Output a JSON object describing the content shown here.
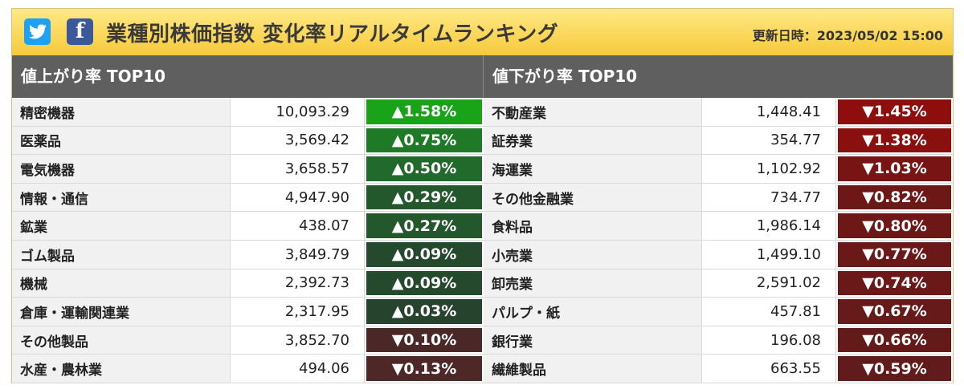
{
  "header": {
    "title": "業種別株価指数 変化率リアルタイムランキング",
    "updated": "更新日時：2023/05/02 15:00"
  },
  "gainers": {
    "heading": "値上がり率 TOP10",
    "rows": [
      {
        "name": "精密機器",
        "value": "10,093.29",
        "change": "▲1.58%",
        "color": "#18a318"
      },
      {
        "name": "医薬品",
        "value": "3,569.42",
        "change": "▲0.75%",
        "color": "#1f7a28"
      },
      {
        "name": "電気機器",
        "value": "3,658.57",
        "change": "▲0.50%",
        "color": "#216a2b"
      },
      {
        "name": "情報・通信",
        "value": "4,947.90",
        "change": "▲0.29%",
        "color": "#23582c"
      },
      {
        "name": "鉱業",
        "value": "438.07",
        "change": "▲0.27%",
        "color": "#23572c"
      },
      {
        "name": "ゴム製品",
        "value": "3,849.79",
        "change": "▲0.09%",
        "color": "#25492d"
      },
      {
        "name": "機械",
        "value": "2,392.73",
        "change": "▲0.09%",
        "color": "#25492d"
      },
      {
        "name": "倉庫・運輸関連業",
        "value": "2,317.95",
        "change": "▲0.03%",
        "color": "#26432e"
      },
      {
        "name": "その他製品",
        "value": "3,852.70",
        "change": "▼0.10%",
        "color": "#4a2828"
      },
      {
        "name": "水産・農林業",
        "value": "494.06",
        "change": "▼0.13%",
        "color": "#4e2727"
      }
    ]
  },
  "losers": {
    "heading": "値下がり率 TOP10",
    "rows": [
      {
        "name": "不動産業",
        "value": "1,448.41",
        "change": "▼1.45%",
        "color": "#8e0d0d"
      },
      {
        "name": "証券業",
        "value": "354.77",
        "change": "▼1.38%",
        "color": "#8a0f0f"
      },
      {
        "name": "海運業",
        "value": "1,102.92",
        "change": "▼1.03%",
        "color": "#781414"
      },
      {
        "name": "その他金融業",
        "value": "734.77",
        "change": "▼0.82%",
        "color": "#6e1717"
      },
      {
        "name": "食料品",
        "value": "1,986.14",
        "change": "▼0.80%",
        "color": "#6d1717"
      },
      {
        "name": "小売業",
        "value": "1,499.10",
        "change": "▼0.77%",
        "color": "#6b1818"
      },
      {
        "name": "卸売業",
        "value": "2,591.02",
        "change": "▼0.74%",
        "color": "#6a1818"
      },
      {
        "name": "パルプ・紙",
        "value": "457.81",
        "change": "▼0.67%",
        "color": "#661a1a"
      },
      {
        "name": "銀行業",
        "value": "196.08",
        "change": "▼0.66%",
        "color": "#651a1a"
      },
      {
        "name": "繊維製品",
        "value": "663.55",
        "change": "▼0.59%",
        "color": "#621b1b"
      }
    ]
  }
}
